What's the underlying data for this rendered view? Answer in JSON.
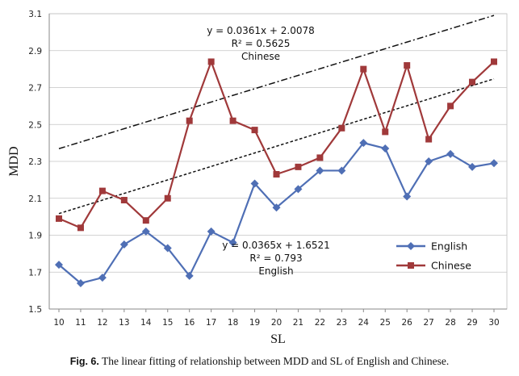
{
  "chart_data": {
    "type": "line",
    "title": "",
    "xlabel": "SL",
    "ylabel": "MDD",
    "x": [
      10,
      11,
      12,
      13,
      14,
      15,
      16,
      17,
      18,
      19,
      20,
      21,
      22,
      23,
      24,
      25,
      26,
      27,
      28,
      29,
      30
    ],
    "xlim": [
      10,
      30
    ],
    "ylim": [
      1.5,
      3.1
    ],
    "yticks": [
      "1.5",
      "1.7",
      "1.9",
      "2.1",
      "2.3",
      "2.5",
      "2.7",
      "2.9",
      "3.1"
    ],
    "legend_position": "lower-right",
    "series": [
      {
        "name": "English",
        "color": "#4f6fb5",
        "marker": "diamond",
        "values": [
          1.74,
          1.64,
          1.67,
          1.85,
          1.92,
          1.83,
          1.68,
          1.92,
          1.86,
          2.18,
          2.05,
          2.15,
          2.25,
          2.25,
          2.4,
          2.37,
          2.11,
          2.3,
          2.34,
          2.27,
          2.29
        ]
      },
      {
        "name": "Chinese",
        "color": "#a0393a",
        "marker": "square",
        "values": [
          1.99,
          1.94,
          2.14,
          2.09,
          1.98,
          2.1,
          2.52,
          2.84,
          2.52,
          2.47,
          2.23,
          2.27,
          2.32,
          2.48,
          2.8,
          2.46,
          2.82,
          2.42,
          2.6,
          2.73,
          2.84
        ]
      }
    ],
    "trendlines": [
      {
        "series": "Chinese",
        "slope": 0.0361,
        "intercept": 2.0078,
        "style": "dash-dot",
        "equation": "y = 0.0361x + 2.0078",
        "r2": "R² = 0.5625",
        "label": "Chinese"
      },
      {
        "series": "English",
        "slope": 0.0365,
        "intercept": 1.6521,
        "style": "dotted",
        "equation": "y = 0.0365x + 1.6521",
        "r2": "R² = 0.793",
        "label": "English"
      }
    ]
  },
  "caption": {
    "label": "Fig. 6.",
    "text": "The linear fitting of relationship between MDD and SL of English and Chinese."
  }
}
